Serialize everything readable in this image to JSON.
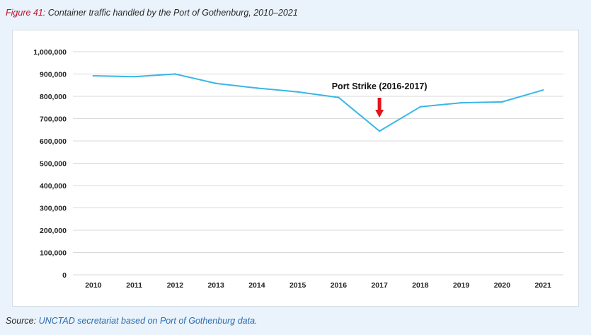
{
  "caption": {
    "figure_label": "Figure 41:",
    "title": "Container traffic handled by the Port of Gothenburg, 2010–2021"
  },
  "source": {
    "label": "Source:",
    "text": "UNCTAD secretariat based on Port of Gothenburg data."
  },
  "colors": {
    "line": "#3bb6e6",
    "arrow": "#e3141b",
    "figure_label": "#c0102a",
    "source_text": "#2a6ab0",
    "gridline": "#d9d9d9"
  },
  "chart_data": {
    "type": "line",
    "title": "Container traffic handled by the Port of Gothenburg, 2010–2021",
    "xlabel": "",
    "ylabel": "",
    "ylim": [
      0,
      1000000
    ],
    "grid": true,
    "legend": "none",
    "y_ticks": [
      "0",
      "100,000",
      "200,000",
      "300,000",
      "400,000",
      "500,000",
      "600,000",
      "700,000",
      "800,000",
      "900,000",
      "1,000,000"
    ],
    "y_tick_values": [
      0,
      100000,
      200000,
      300000,
      400000,
      500000,
      600000,
      700000,
      800000,
      900000,
      1000000
    ],
    "categories": [
      "2010",
      "2011",
      "2012",
      "2013",
      "2014",
      "2015",
      "2016",
      "2017",
      "2018",
      "2019",
      "2020",
      "2021"
    ],
    "series": [
      {
        "values": [
          892000,
          888000,
          900000,
          858000,
          837000,
          820000,
          795000,
          644000,
          753000,
          771000,
          775000,
          828000
        ]
      }
    ],
    "annotations": [
      {
        "text": "Port Strike (2016-2017)",
        "category": "2017"
      }
    ]
  }
}
